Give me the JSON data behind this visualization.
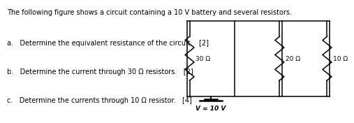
{
  "title": "The following figure shows a circuit containing a 10 V battery and several resistors.",
  "q1": "a.   Determine the equivalent resistance of the circuit.   [2]",
  "q2": "b.   Determine the current through 30 Ω resistors.   [2]",
  "q3": "c.   Determine the currents through 10 Ω resistor.   [4]",
  "r_labels": [
    "30 Ω",
    "20 Ω",
    "10 Ω"
  ],
  "voltage_label": "V = 10 V",
  "bg_color": "#ffffff",
  "text_color": "#000000",
  "title_fs": 7.0,
  "q_fs": 7.0,
  "label_fs": 6.5,
  "volt_fs": 6.5,
  "CL": 0.555,
  "CR": 0.995,
  "CT": 0.87,
  "CB": 0.18,
  "lw": 1.1
}
